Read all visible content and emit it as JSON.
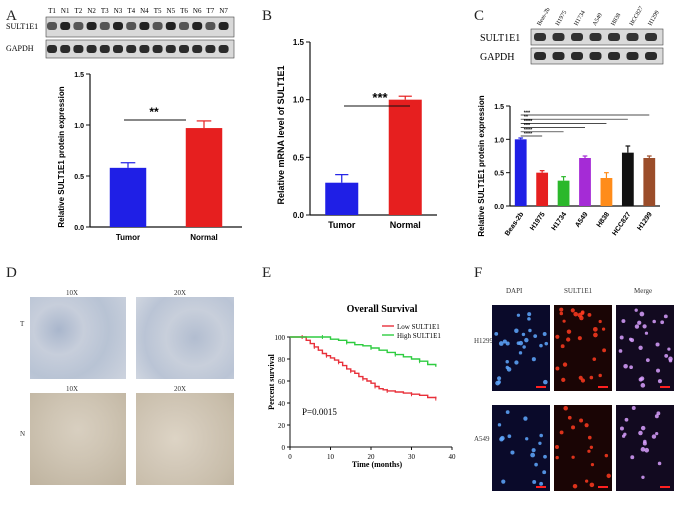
{
  "panels": {
    "A": {
      "letter": "A",
      "blot_lanes": [
        "T1",
        "N1",
        "T2",
        "N2",
        "T3",
        "N3",
        "T4",
        "N4",
        "T5",
        "N5",
        "T6",
        "N6",
        "T7",
        "N7"
      ],
      "blot_rows": [
        "SULT1E1",
        "GAPDH"
      ],
      "significance": "**"
    },
    "B": {
      "letter": "B",
      "significance": "***"
    },
    "C": {
      "letter": "C",
      "blot_lanes": [
        "Beas-2b",
        "H1975",
        "H1734",
        "A549",
        "H838",
        "HCC827",
        "H1299"
      ],
      "blot_rows": [
        "SULT1E1",
        "GAPDH"
      ],
      "significance_marks": [
        "****",
        "****",
        "***",
        "****",
        "**",
        "***"
      ]
    },
    "D": {
      "letter": "D",
      "mags": [
        "10X",
        "20X",
        "10X",
        "20X"
      ],
      "row_labels": [
        "T",
        "N"
      ]
    },
    "E": {
      "letter": "E",
      "p_value": "P=0.0015"
    },
    "F": {
      "letter": "F",
      "cols": [
        "DAPI",
        "SULT1E1",
        "Merge"
      ],
      "rows": [
        "H1299",
        "A549"
      ]
    }
  },
  "chart_data": [
    {
      "type": "bar",
      "panel": "A",
      "categories": [
        "Tumor",
        "Normal"
      ],
      "values": [
        0.58,
        0.97
      ],
      "errors": [
        0.05,
        0.07
      ],
      "colors": [
        "#1f1fe6",
        "#e61f1f"
      ],
      "ylabel": "Relative SULT1E1 protein expression",
      "ylim": [
        0,
        1.5
      ],
      "yticks": [
        "0.0",
        "0.5",
        "1.0",
        "1.5"
      ]
    },
    {
      "type": "bar",
      "panel": "B",
      "categories": [
        "Tumor",
        "Normal"
      ],
      "values": [
        0.28,
        1.0
      ],
      "errors": [
        0.07,
        0.03
      ],
      "colors": [
        "#1f1fe6",
        "#e61f1f"
      ],
      "ylabel": "Relative mRNA level of SULT1E1",
      "ylim": [
        0,
        1.5
      ],
      "yticks": [
        "0.0",
        "0.5",
        "1.0",
        "1.5"
      ]
    },
    {
      "type": "bar",
      "panel": "C",
      "categories": [
        "Beas-2b",
        "H1975",
        "H1734",
        "A549",
        "H838",
        "HCC827",
        "H1299"
      ],
      "values": [
        1.0,
        0.5,
        0.38,
        0.72,
        0.42,
        0.8,
        0.72
      ],
      "errors": [
        0.02,
        0.03,
        0.06,
        0.03,
        0.08,
        0.1,
        0.03
      ],
      "colors": [
        "#1f1fe6",
        "#e61f1f",
        "#2bb82b",
        "#a52bd6",
        "#ff8c1a",
        "#111111",
        "#9b4d2a"
      ],
      "ylabel": "Relative SULT1E1 protein expression",
      "ylim": [
        0,
        1.5
      ],
      "yticks": [
        "0.0",
        "0.5",
        "1.0",
        "1.5"
      ]
    },
    {
      "type": "line",
      "panel": "E",
      "title": "Overall Survival",
      "xlabel": "Time (months)",
      "ylabel": "Percent survival",
      "xlim": [
        0,
        40
      ],
      "ylim": [
        0,
        100
      ],
      "xticks": [
        "0",
        "10",
        "20",
        "30",
        "40"
      ],
      "yticks": [
        "0",
        "20",
        "40",
        "60",
        "80",
        "100"
      ],
      "series": [
        {
          "name": "Low SULT1E1",
          "color": "#e8303a",
          "x": [
            0,
            3,
            4,
            5,
            6,
            7,
            8,
            9,
            10,
            11,
            12,
            13,
            14,
            15,
            16,
            17,
            18,
            19,
            20,
            21,
            22,
            23,
            24,
            26,
            28,
            30,
            32,
            34,
            36
          ],
          "y": [
            100,
            100,
            97,
            94,
            91,
            88,
            85,
            83,
            81,
            79,
            77,
            74,
            71,
            69,
            67,
            64,
            62,
            60,
            58,
            55,
            53,
            52,
            51,
            50,
            49,
            48,
            47,
            45,
            44
          ]
        },
        {
          "name": "High SULT1E1",
          "color": "#2ecc40",
          "x": [
            0,
            8,
            10,
            12,
            14,
            16,
            18,
            20,
            22,
            24,
            26,
            28,
            30,
            32,
            34,
            36
          ],
          "y": [
            100,
            100,
            98,
            97,
            95,
            93,
            92,
            90,
            88,
            86,
            84,
            82,
            80,
            78,
            75,
            73
          ]
        }
      ]
    }
  ]
}
